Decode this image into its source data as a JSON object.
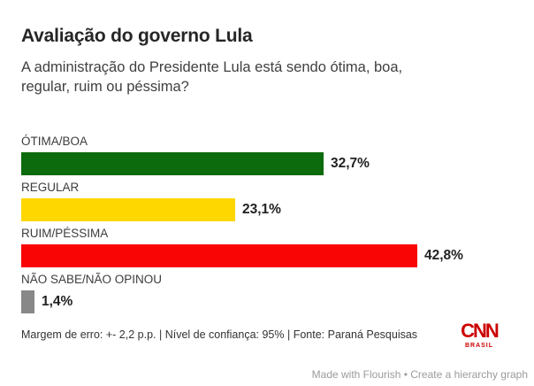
{
  "header": {
    "title": "Avaliação do governo Lula",
    "subtitle": "A administração do Presidente Lula está sendo ótima, boa, regular, ruim ou péssima?"
  },
  "chart_data": {
    "type": "bar",
    "orientation": "horizontal",
    "title": "Avaliação do governo Lula",
    "categories": [
      "ÓTIMA/BOA",
      "REGULAR",
      "RUIM/PÉSSIMA",
      "NÃO SABE/NÃO OPINOU"
    ],
    "values": [
      32.7,
      23.1,
      42.8,
      1.4
    ],
    "value_labels": [
      "32,7%",
      "23,1%",
      "42,8%",
      "1,4%"
    ],
    "colors": [
      "#0c6b0c",
      "#ffd700",
      "#f90505",
      "#888888"
    ],
    "unit": "%",
    "xlim": [
      0,
      45
    ],
    "grid": false,
    "legend": "none"
  },
  "footer": {
    "note": "Margem de erro: +- 2,2 p.p. | Nível de confiança: 95% | Fonte: Paraná Pesquisas",
    "logo": {
      "text": "CNN",
      "subtext": "BRASIL",
      "color": "#cc0000"
    }
  },
  "credit": {
    "made_with": "Made with Flourish",
    "separator": " • ",
    "link": "Create a hierarchy graph"
  }
}
